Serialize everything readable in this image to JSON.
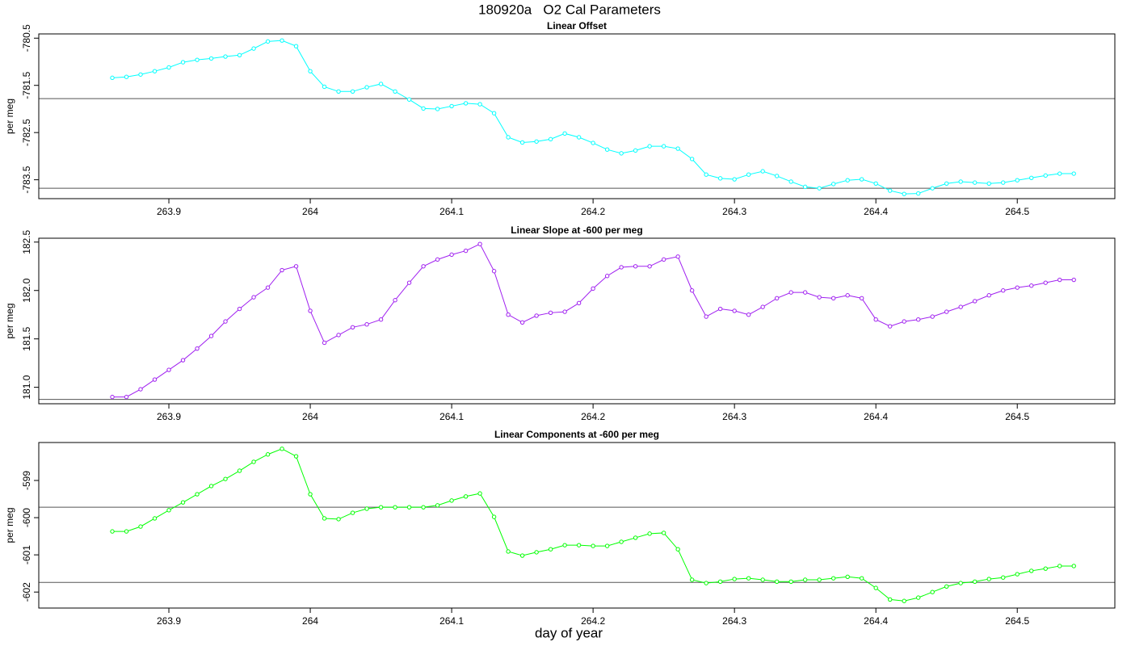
{
  "title": "180920a   O2 Cal Parameters",
  "xlabel": "day of year",
  "chart_data": [
    {
      "type": "line",
      "title": "Linear Offset",
      "ylabel": "per meg",
      "marker": "circle",
      "x": [
        263.86,
        263.87,
        263.88,
        263.89,
        263.9,
        263.91,
        263.92,
        263.93,
        263.94,
        263.95,
        263.96,
        263.97,
        263.98,
        263.99,
        264.0,
        264.01,
        264.02,
        264.03,
        264.04,
        264.05,
        264.06,
        264.07,
        264.08,
        264.09,
        264.1,
        264.11,
        264.12,
        264.13,
        264.14,
        264.15,
        264.16,
        264.17,
        264.18,
        264.19,
        264.2,
        264.21,
        264.22,
        264.23,
        264.24,
        264.25,
        264.26,
        264.27,
        264.28,
        264.29,
        264.3,
        264.31,
        264.32,
        264.33,
        264.34,
        264.35,
        264.36,
        264.37,
        264.38,
        264.39,
        264.4,
        264.41,
        264.42,
        264.43,
        264.44,
        264.45,
        264.46,
        264.47,
        264.48,
        264.49,
        264.5,
        264.51,
        264.52,
        264.53,
        264.54
      ],
      "series": [
        {
          "color": "#00ffff",
          "values": [
            -781.34,
            -781.32,
            -781.27,
            -781.2,
            -781.12,
            -781.01,
            -780.96,
            -780.93,
            -780.89,
            -780.86,
            -780.72,
            -780.57,
            -780.55,
            -780.67,
            -781.2,
            -781.53,
            -781.63,
            -781.63,
            -781.54,
            -781.47,
            -781.63,
            -781.8,
            -781.99,
            -782.0,
            -781.94,
            -781.88,
            -781.9,
            -782.09,
            -782.6,
            -782.71,
            -782.69,
            -782.64,
            -782.52,
            -782.6,
            -782.72,
            -782.86,
            -782.94,
            -782.88,
            -782.79,
            -782.79,
            -782.84,
            -783.06,
            -783.39,
            -783.47,
            -783.49,
            -783.39,
            -783.32,
            -783.42,
            -783.54,
            -783.65,
            -783.68,
            -783.59,
            -783.51,
            -783.49,
            -783.58,
            -783.73,
            -783.8,
            -783.79,
            -783.68,
            -783.58,
            -783.54,
            -783.56,
            -783.58,
            -783.56,
            -783.51,
            -783.46,
            -783.41,
            -783.37,
            -783.37
          ]
        }
      ],
      "xlim": [
        263.808,
        264.569
      ],
      "xticks": [
        263.9,
        264.0,
        264.1,
        264.2,
        264.3,
        264.4,
        264.5
      ],
      "ylim": [
        -783.9,
        -780.41
      ],
      "yticks": [
        -780.5,
        -781.5,
        -782.5,
        -783.5
      ],
      "hlines": [
        -781.78,
        -783.68
      ]
    },
    {
      "type": "line",
      "title": "Linear Slope at -600 per meg",
      "ylabel": "per meg",
      "marker": "circle",
      "x": [
        263.86,
        263.87,
        263.88,
        263.89,
        263.9,
        263.91,
        263.92,
        263.93,
        263.94,
        263.95,
        263.96,
        263.97,
        263.98,
        263.99,
        264.0,
        264.01,
        264.02,
        264.03,
        264.04,
        264.05,
        264.06,
        264.07,
        264.08,
        264.09,
        264.1,
        264.11,
        264.12,
        264.13,
        264.14,
        264.15,
        264.16,
        264.17,
        264.18,
        264.19,
        264.2,
        264.21,
        264.22,
        264.23,
        264.24,
        264.25,
        264.26,
        264.27,
        264.28,
        264.29,
        264.3,
        264.31,
        264.32,
        264.33,
        264.34,
        264.35,
        264.36,
        264.37,
        264.38,
        264.39,
        264.4,
        264.41,
        264.42,
        264.43,
        264.44,
        264.45,
        264.46,
        264.47,
        264.48,
        264.49,
        264.5,
        264.51,
        264.52,
        264.53,
        264.54
      ],
      "series": [
        {
          "color": "#a020f0",
          "values": [
            180.9,
            180.9,
            180.98,
            181.08,
            181.18,
            181.28,
            181.4,
            181.53,
            181.68,
            181.81,
            181.93,
            182.03,
            182.21,
            182.25,
            181.79,
            181.46,
            181.54,
            181.62,
            181.65,
            181.7,
            181.9,
            182.08,
            182.25,
            182.32,
            182.37,
            182.41,
            182.48,
            182.2,
            181.75,
            181.67,
            181.74,
            181.77,
            181.78,
            181.87,
            182.02,
            182.15,
            182.24,
            182.25,
            182.25,
            182.32,
            182.35,
            182.0,
            181.73,
            181.81,
            181.79,
            181.75,
            181.83,
            181.92,
            181.98,
            181.98,
            181.93,
            181.92,
            181.95,
            181.92,
            181.7,
            181.63,
            181.68,
            181.7,
            181.73,
            181.78,
            181.83,
            181.89,
            181.95,
            182.0,
            182.03,
            182.05,
            182.08,
            182.11,
            182.11
          ]
        }
      ],
      "xlim": [
        263.808,
        264.569
      ],
      "xticks": [
        263.9,
        264.0,
        264.1,
        264.2,
        264.3,
        264.4,
        264.5
      ],
      "ylim": [
        180.83,
        182.54
      ],
      "yticks": [
        {
          "value": 182.5,
          "label": "182.5"
        },
        {
          "value": 182,
          "label": "182.0"
        },
        {
          "value": 181.5,
          "label": "181.5"
        },
        {
          "value": 181,
          "label": "181.0"
        }
      ],
      "hlines": [
        180.875
      ]
    },
    {
      "type": "line",
      "title": "Linear Components at -600 per meg",
      "ylabel": "per meg",
      "marker": "circle",
      "x": [
        263.86,
        263.87,
        263.88,
        263.89,
        263.9,
        263.91,
        263.92,
        263.93,
        263.94,
        263.95,
        263.96,
        263.97,
        263.98,
        263.99,
        264.0,
        264.01,
        264.02,
        264.03,
        264.04,
        264.05,
        264.06,
        264.07,
        264.08,
        264.09,
        264.1,
        264.11,
        264.12,
        264.13,
        264.14,
        264.15,
        264.16,
        264.17,
        264.18,
        264.19,
        264.2,
        264.21,
        264.22,
        264.23,
        264.24,
        264.25,
        264.26,
        264.27,
        264.28,
        264.29,
        264.3,
        264.31,
        264.32,
        264.33,
        264.34,
        264.35,
        264.36,
        264.37,
        264.38,
        264.39,
        264.4,
        264.41,
        264.42,
        264.43,
        264.44,
        264.45,
        264.46,
        264.47,
        264.48,
        264.49,
        264.5,
        264.51,
        264.52,
        264.53,
        264.54
      ],
      "series": [
        {
          "color": "#00ff00",
          "values": [
            -600.37,
            -600.37,
            -600.24,
            -600.02,
            -599.8,
            -599.59,
            -599.37,
            -599.15,
            -598.96,
            -598.74,
            -598.5,
            -598.3,
            -598.15,
            -598.35,
            -599.37,
            -600.02,
            -600.04,
            -599.87,
            -599.76,
            -599.72,
            -599.72,
            -599.72,
            -599.72,
            -599.67,
            -599.54,
            -599.43,
            -599.35,
            -599.98,
            -600.91,
            -601.02,
            -600.93,
            -600.85,
            -600.74,
            -600.74,
            -600.76,
            -600.76,
            -600.65,
            -600.54,
            -600.43,
            -600.41,
            -600.85,
            -601.67,
            -601.76,
            -601.72,
            -601.65,
            -601.63,
            -601.67,
            -601.72,
            -601.72,
            -601.67,
            -601.67,
            -601.63,
            -601.59,
            -601.63,
            -601.89,
            -602.2,
            -602.24,
            -602.15,
            -602.0,
            -601.85,
            -601.76,
            -601.72,
            -601.65,
            -601.61,
            -601.52,
            -601.43,
            -601.37,
            -601.3,
            -601.3
          ]
        }
      ],
      "xlim": [
        263.808,
        264.569
      ],
      "xticks": [
        263.9,
        264.0,
        264.1,
        264.2,
        264.3,
        264.4,
        264.5
      ],
      "ylim": [
        -602.43,
        -597.98
      ],
      "yticks": [
        -599,
        -600,
        -601,
        -602
      ],
      "hlines": [
        -599.72,
        -601.74
      ]
    }
  ]
}
